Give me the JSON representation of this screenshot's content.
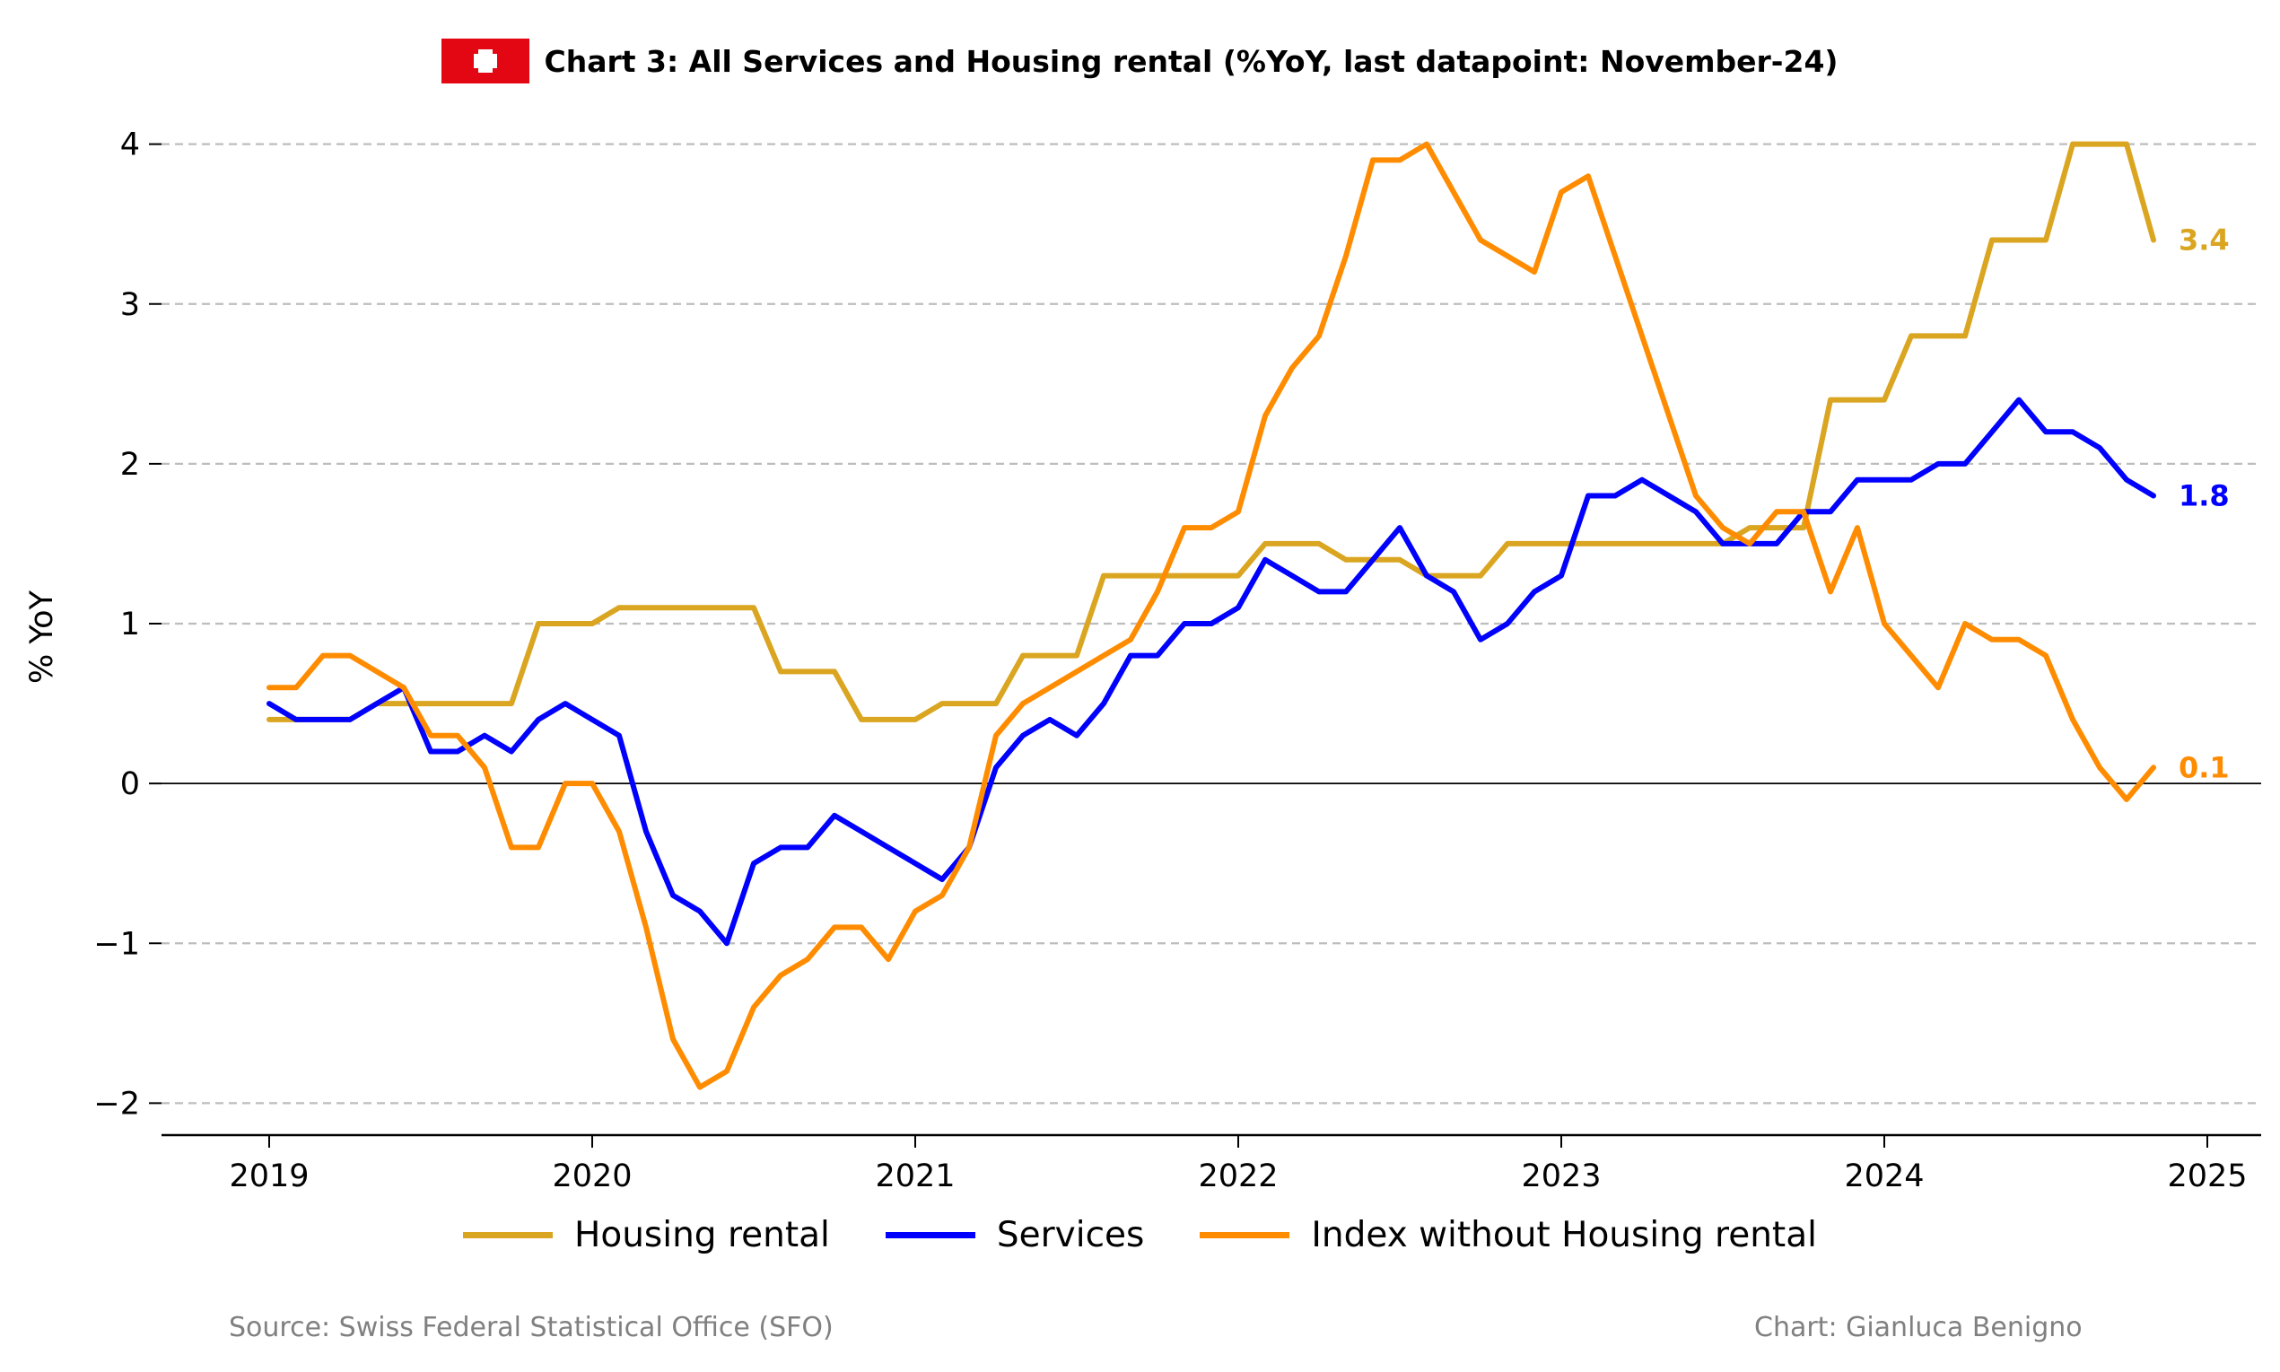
{
  "header": {
    "title": "Chart 3: All Services and Housing rental (%YoY, last datapoint: November-24)"
  },
  "flag": {
    "icon": "swiss-flag-icon",
    "red": "#e30613",
    "white": "#ffffff"
  },
  "footer": {
    "source": "Source: Swiss Federal Statistical Office (SFO)",
    "credit": "Chart: Gianluca Benigno"
  },
  "chart_data": {
    "type": "line",
    "title": "Chart 3: All Services and Housing rental (%YoY, last datapoint: November-24)",
    "ylabel": "% YoY",
    "xlabel": "",
    "x_start": "2019-01",
    "x_end": "2024-11",
    "x_frequency": "monthly",
    "xlim": [
      "2018-09",
      "2025-03"
    ],
    "ylim": [
      -2.2,
      4.2
    ],
    "x_ticks": [
      "2019",
      "2020",
      "2021",
      "2022",
      "2023",
      "2024",
      "2025"
    ],
    "y_ticks": [
      -2,
      -1,
      0,
      1,
      2,
      3,
      4
    ],
    "y_tick_labels": [
      "−2",
      "−1",
      "0",
      "1",
      "2",
      "3",
      "4"
    ],
    "grid": "horizontal dashed",
    "zero_line": true,
    "legend": "bottom-center",
    "series": [
      {
        "name": "Housing rental",
        "color": "#DAA520",
        "end_label": "3.4",
        "values": [
          0.4,
          0.4,
          0.4,
          0.4,
          0.5,
          0.5,
          0.5,
          0.5,
          0.5,
          0.5,
          1.0,
          1.0,
          1.0,
          1.1,
          1.1,
          1.1,
          1.1,
          1.1,
          1.1,
          0.7,
          0.7,
          0.7,
          0.4,
          0.4,
          0.4,
          0.5,
          0.5,
          0.5,
          0.8,
          0.8,
          0.8,
          1.3,
          1.3,
          1.3,
          1.3,
          1.3,
          1.3,
          1.5,
          1.5,
          1.5,
          1.4,
          1.4,
          1.4,
          1.3,
          1.3,
          1.3,
          1.5,
          1.5,
          1.5,
          1.5,
          1.5,
          1.5,
          1.5,
          1.5,
          1.5,
          1.6,
          1.6,
          1.6,
          2.4,
          2.4,
          2.4,
          2.8,
          2.8,
          2.8,
          3.4,
          3.4,
          3.4,
          4.0,
          4.0,
          4.0,
          3.4
        ]
      },
      {
        "name": "Services",
        "color": "#0000FF",
        "end_label": "1.8",
        "values": [
          0.5,
          0.4,
          0.4,
          0.4,
          0.5,
          0.6,
          0.2,
          0.2,
          0.3,
          0.2,
          0.4,
          0.5,
          0.4,
          0.3,
          -0.3,
          -0.7,
          -0.8,
          -1.0,
          -0.5,
          -0.4,
          -0.4,
          -0.2,
          -0.3,
          -0.4,
          -0.5,
          -0.6,
          -0.4,
          0.1,
          0.3,
          0.4,
          0.3,
          0.5,
          0.8,
          0.8,
          1.0,
          1.0,
          1.1,
          1.4,
          1.3,
          1.2,
          1.2,
          1.4,
          1.6,
          1.3,
          1.2,
          0.9,
          1.0,
          1.2,
          1.3,
          1.8,
          1.8,
          1.9,
          1.8,
          1.7,
          1.5,
          1.5,
          1.5,
          1.7,
          1.7,
          1.9,
          1.9,
          1.9,
          2.0,
          2.0,
          2.2,
          2.4,
          2.2,
          2.2,
          2.1,
          1.9,
          1.8
        ]
      },
      {
        "name": "Index without Housing rental",
        "color": "#FF8C00",
        "end_label": "0.1",
        "values": [
          0.6,
          0.6,
          0.8,
          0.8,
          0.7,
          0.6,
          0.3,
          0.3,
          0.1,
          -0.4,
          -0.4,
          0.0,
          0.0,
          -0.3,
          -0.9,
          -1.6,
          -1.9,
          -1.8,
          -1.4,
          -1.2,
          -1.1,
          -0.9,
          -0.9,
          -1.1,
          -0.8,
          -0.7,
          -0.4,
          0.3,
          0.5,
          0.6,
          0.7,
          0.8,
          0.9,
          1.2,
          1.6,
          1.6,
          1.7,
          2.3,
          2.6,
          2.8,
          3.3,
          3.9,
          3.9,
          4.0,
          3.7,
          3.4,
          3.3,
          3.2,
          3.7,
          3.8,
          3.3,
          2.8,
          2.3,
          1.8,
          1.6,
          1.5,
          1.7,
          1.7,
          1.2,
          1.6,
          1.0,
          0.8,
          0.6,
          1.0,
          0.9,
          0.9,
          0.8,
          0.4,
          0.1,
          -0.1,
          0.1
        ]
      }
    ]
  }
}
